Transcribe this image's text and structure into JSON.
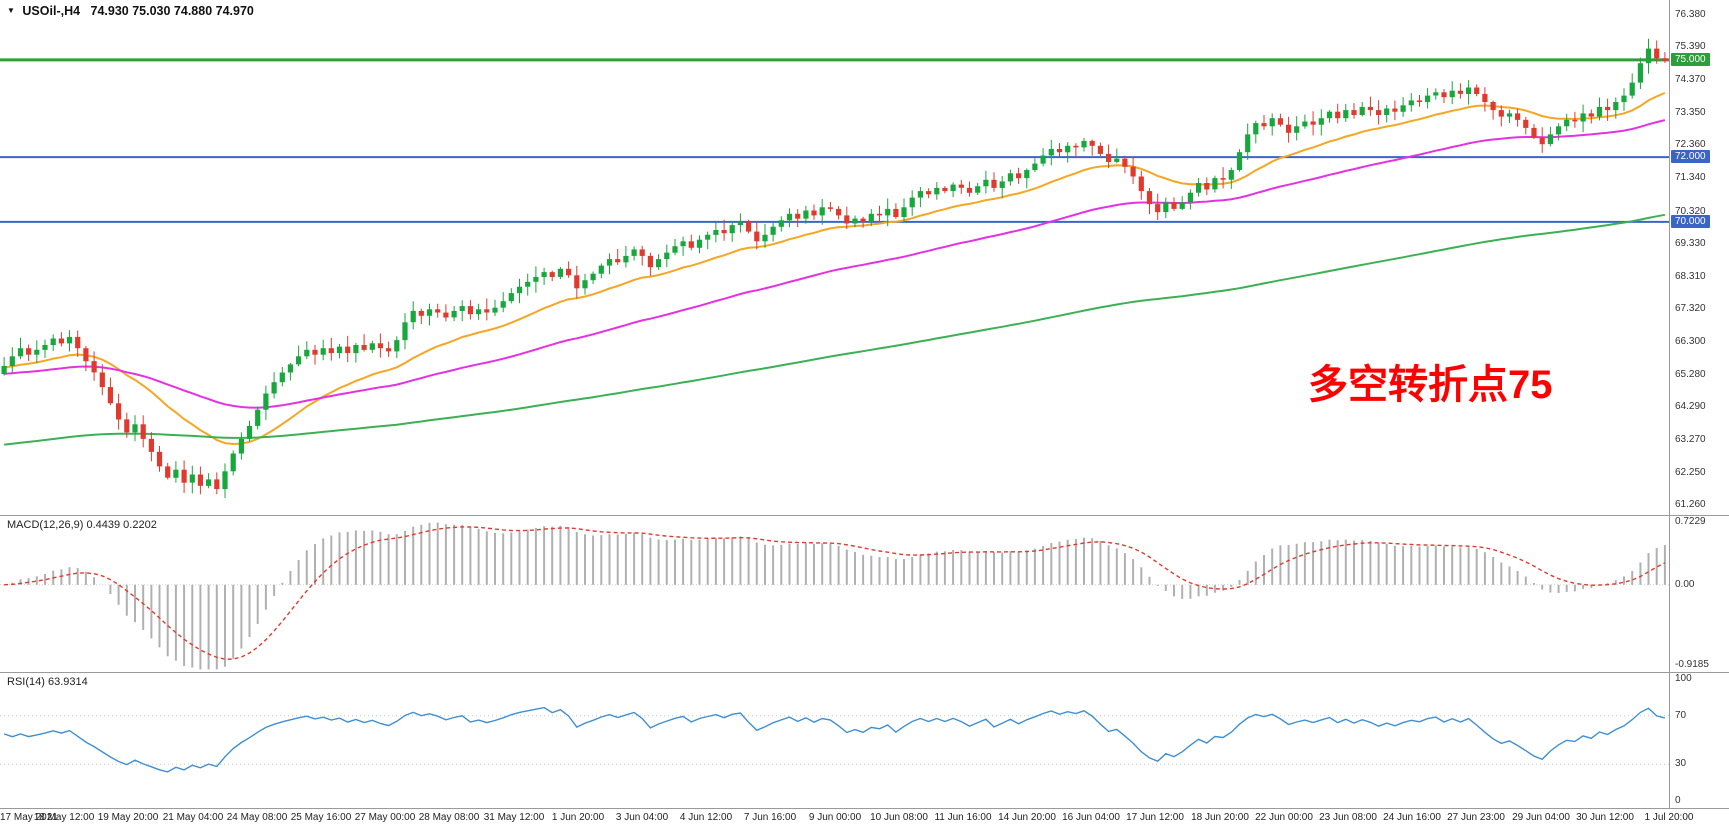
{
  "header": {
    "symbol_period": "USOil-,H4",
    "ohlc": "74.930 75.030 74.880 74.970",
    "dropdown_icon": "triangle-down"
  },
  "annotation": {
    "text": "多空转折点75",
    "color": "#ff0000"
  },
  "chart_data": {
    "type": "candlestick",
    "symbol": "USOil-",
    "timeframe": "H4",
    "current_bar": {
      "open": 74.93,
      "high": 75.03,
      "low": 74.88,
      "close": 74.97
    },
    "price_range": [
      60.95,
      76.85
    ],
    "price_axis_labels": [
      "76.380",
      "75.390",
      "74.370",
      "73.350",
      "72.360",
      "71.340",
      "70.320",
      "69.330",
      "68.310",
      "67.320",
      "66.300",
      "65.280",
      "64.290",
      "63.270",
      "62.250",
      "61.260"
    ],
    "time_labels": [
      "17 May 2021",
      "18 May 12:00",
      "19 May 20:00",
      "21 May 04:00",
      "24 May 08:00",
      "25 May 16:00",
      "27 May 00:00",
      "28 May 08:00",
      "31 May 12:00",
      "1 Jun 20:00",
      "3 Jun 04:00",
      "4 Jun 12:00",
      "7 Jun 16:00",
      "9 Jun 00:00",
      "10 Jun 08:00",
      "11 Jun 16:00",
      "14 Jun 20:00",
      "16 Jun 04:00",
      "17 Jun 12:00",
      "18 Jun 20:00",
      "22 Jun 00:00",
      "23 Jun 08:00",
      "24 Jun 16:00",
      "27 Jun 23:00",
      "29 Jun 04:00",
      "30 Jun 12:00",
      "1 Jul 20:00"
    ],
    "colors": {
      "up": "#18a73c",
      "down": "#e03a2e",
      "macd_hist": "#b0b0b0",
      "macd_signal": "#e03a30",
      "rsi_line": "#3f8fd2",
      "axis_text": "#333333",
      "level_green": "#2e9e3a",
      "level_blue": "#3a64c8"
    },
    "hlines": [
      {
        "value": 75.0,
        "label": "75.000",
        "color": "#2e9e3a",
        "width": 3
      },
      {
        "value": 72.0,
        "label": "72.000",
        "color": "#3a64c8",
        "width": 2
      },
      {
        "value": 70.0,
        "label": "70.000",
        "color": "#3a64c8",
        "width": 2
      }
    ],
    "candles": {
      "first_open": 65.3,
      "closes": [
        65.55,
        65.85,
        66.1,
        65.9,
        66.05,
        66.2,
        66.4,
        66.25,
        66.45,
        66.1,
        65.7,
        65.35,
        64.9,
        64.4,
        63.9,
        63.5,
        63.75,
        63.3,
        62.9,
        62.45,
        62.1,
        62.35,
        61.95,
        62.2,
        61.85,
        62.05,
        61.75,
        62.3,
        62.85,
        63.3,
        63.7,
        64.2,
        64.7,
        65.05,
        65.35,
        65.6,
        65.85,
        66.05,
        65.9,
        66.1,
        65.95,
        66.15,
        65.95,
        66.2,
        66.05,
        66.25,
        66.1,
        66.0,
        66.35,
        66.9,
        67.25,
        67.1,
        67.3,
        67.2,
        67.05,
        67.25,
        67.4,
        67.15,
        67.3,
        67.2,
        67.35,
        67.55,
        67.8,
        68.0,
        68.15,
        68.3,
        68.45,
        68.3,
        68.55,
        68.35,
        67.95,
        68.2,
        68.4,
        68.65,
        68.85,
        68.75,
        68.95,
        69.15,
        68.95,
        68.6,
        68.85,
        69.05,
        69.25,
        69.4,
        69.2,
        69.45,
        69.6,
        69.75,
        69.65,
        69.9,
        70.0,
        69.7,
        69.4,
        69.6,
        69.85,
        70.05,
        70.25,
        70.1,
        70.35,
        70.2,
        70.45,
        70.4,
        70.2,
        69.95,
        70.1,
        70.0,
        70.25,
        70.2,
        70.4,
        70.15,
        70.45,
        70.75,
        70.95,
        70.85,
        71.05,
        70.95,
        71.15,
        71.05,
        70.9,
        71.1,
        71.3,
        71.05,
        71.25,
        71.5,
        71.35,
        71.6,
        71.8,
        72.05,
        72.25,
        72.15,
        72.35,
        72.3,
        72.5,
        72.35,
        72.1,
        71.85,
        71.95,
        71.7,
        71.4,
        70.95,
        70.55,
        70.3,
        70.6,
        70.4,
        70.6,
        70.9,
        71.2,
        71.0,
        71.35,
        71.3,
        71.6,
        72.15,
        72.7,
        73.05,
        72.95,
        73.2,
        73.0,
        72.75,
        72.95,
        73.1,
        73.0,
        73.2,
        73.4,
        73.2,
        73.45,
        73.3,
        73.55,
        73.45,
        73.3,
        73.5,
        73.4,
        73.6,
        73.75,
        73.7,
        73.9,
        74.0,
        73.85,
        74.05,
        73.95,
        74.15,
        73.95,
        73.7,
        73.45,
        73.25,
        73.35,
        73.15,
        72.9,
        72.6,
        72.4,
        72.7,
        72.95,
        73.15,
        73.1,
        73.35,
        73.25,
        73.55,
        73.45,
        73.7,
        73.9,
        74.3,
        74.9,
        75.35,
        75.05,
        74.97
      ]
    },
    "moving_averages": [
      {
        "name": "ma-fast",
        "period": 20,
        "init": 65.5,
        "color": "#f5a623"
      },
      {
        "name": "ma-mid",
        "period": 60,
        "init": 65.3,
        "color": "#e332e3"
      },
      {
        "name": "ma-slow",
        "period": 200,
        "init": 63.1,
        "color": "#3cb054"
      }
    ],
    "macd": {
      "label": "MACD(12,26,9) 0.4439 0.2202",
      "fast": 12,
      "slow": 26,
      "signal": 9,
      "current": 0.4439,
      "current_signal": 0.2202,
      "range": [
        -1.0,
        0.8
      ],
      "axis_labels": [
        "0.7229",
        "0.00",
        "-0.9185"
      ]
    },
    "rsi": {
      "label": "RSI(14) 63.9314",
      "period": 14,
      "current": 63.9314,
      "range": [
        0,
        100
      ],
      "axis_labels": [
        "100",
        "70",
        "30",
        "0"
      ],
      "levels": [
        70,
        30
      ]
    }
  }
}
